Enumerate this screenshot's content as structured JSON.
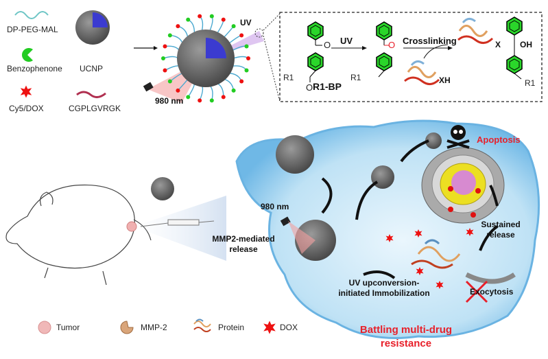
{
  "legend_top": {
    "items": [
      {
        "label": "DP-PEG-MAL",
        "icon": "wave-icon"
      },
      {
        "label": "Benzophenone",
        "icon": "green-pacman-icon"
      },
      {
        "label": "Cy5/DOX",
        "icon": "red-star-icon"
      },
      {
        "label": "UCNP",
        "icon": "sphere-icon"
      },
      {
        "label": "CGPLGVRGK",
        "icon": "peptide-squiggle-icon"
      }
    ]
  },
  "nanoparticle": {
    "uv_label": "UV",
    "laser_label": "980 nm"
  },
  "reaction": {
    "reactant_label": "R1-BP",
    "step1_label": "UV",
    "step2_label": "Crosslinking",
    "oxygen": "O",
    "r1": "R1",
    "xh": "XH",
    "x": "X",
    "oh": "OH"
  },
  "cell": {
    "apoptosis": "Apoptosis",
    "laser_label": "980 nm",
    "mmp2_release": [
      "MMP2-mediated",
      "release"
    ],
    "immobilization": [
      "UV upconversion-",
      "initiated Immobilization"
    ],
    "sustained": [
      "Sustained",
      "release"
    ],
    "exocytosis": "Exocytosis",
    "title": [
      "Battling multi-drug",
      "resistance"
    ]
  },
  "legend_bottom": {
    "items": [
      {
        "label": "Tumor",
        "icon": "tumor-icon"
      },
      {
        "label": "MMP-2",
        "icon": "mmp2-icon"
      },
      {
        "label": "Protein",
        "icon": "protein-icon"
      },
      {
        "label": "DOX",
        "icon": "dox-star-icon"
      }
    ]
  },
  "colors": {
    "accent_red": "#e8202a",
    "cell_blue": "#8cc8ec",
    "benzophenone_green": "#22cc22",
    "ucnp_gray": "#6b6b6b"
  }
}
